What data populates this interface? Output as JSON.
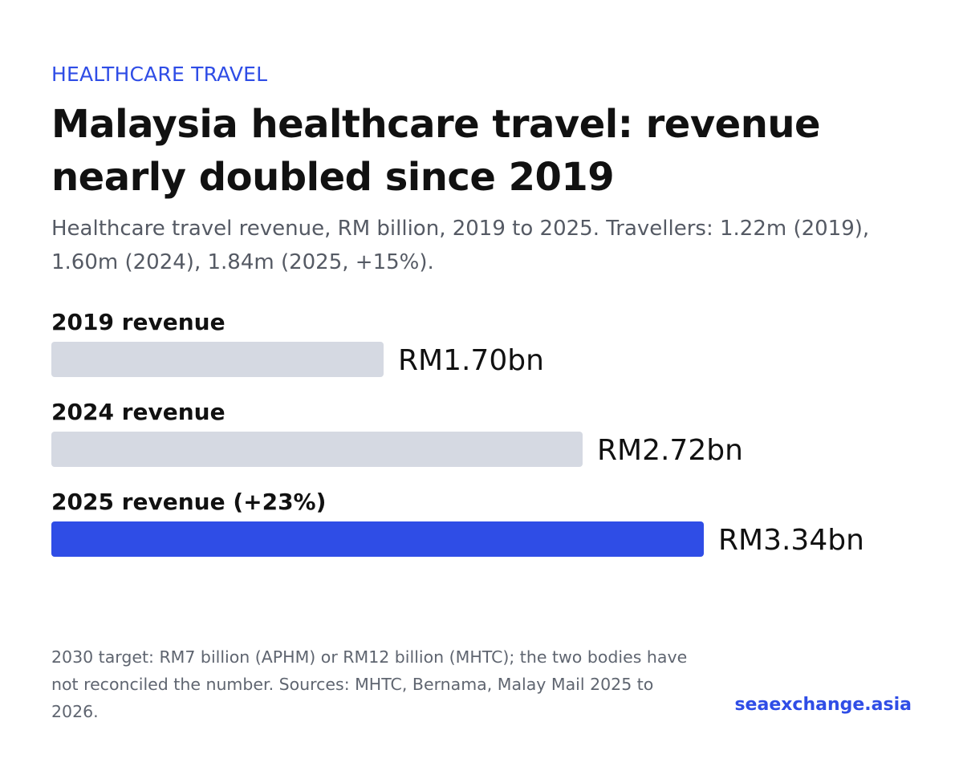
{
  "header": {
    "kicker": "HEALTHCARE TRAVEL",
    "title": "Malaysia healthcare travel: revenue nearly doubled since 2019",
    "subtitle": "Healthcare travel revenue, RM billion, 2019 to 2025. Travellers: 1.22m (2019), 1.60m (2024), 1.84m (2025, +15%)."
  },
  "chart_data": {
    "type": "bar",
    "orientation": "horizontal",
    "categories": [
      "2019 revenue",
      "2024 revenue",
      "2025 revenue (+23%)"
    ],
    "values": [
      1.7,
      2.72,
      3.34
    ],
    "value_labels": [
      "RM1.70bn",
      "RM2.72bn",
      "RM3.34bn"
    ],
    "xlim": [
      0,
      3.34
    ],
    "grid": false,
    "colors": {
      "default_bar": "#d5d9e2",
      "highlight_bar": "#2f4de6"
    },
    "highlight_index": 2
  },
  "footer": {
    "note": "2030 target: RM7 billion (APHM) or RM12 billion (MHTC); the two bodies have not reconciled the number. Sources: MHTC, Bernama, Malay Mail 2025 to 2026.",
    "brand": "seaexchange.asia"
  }
}
